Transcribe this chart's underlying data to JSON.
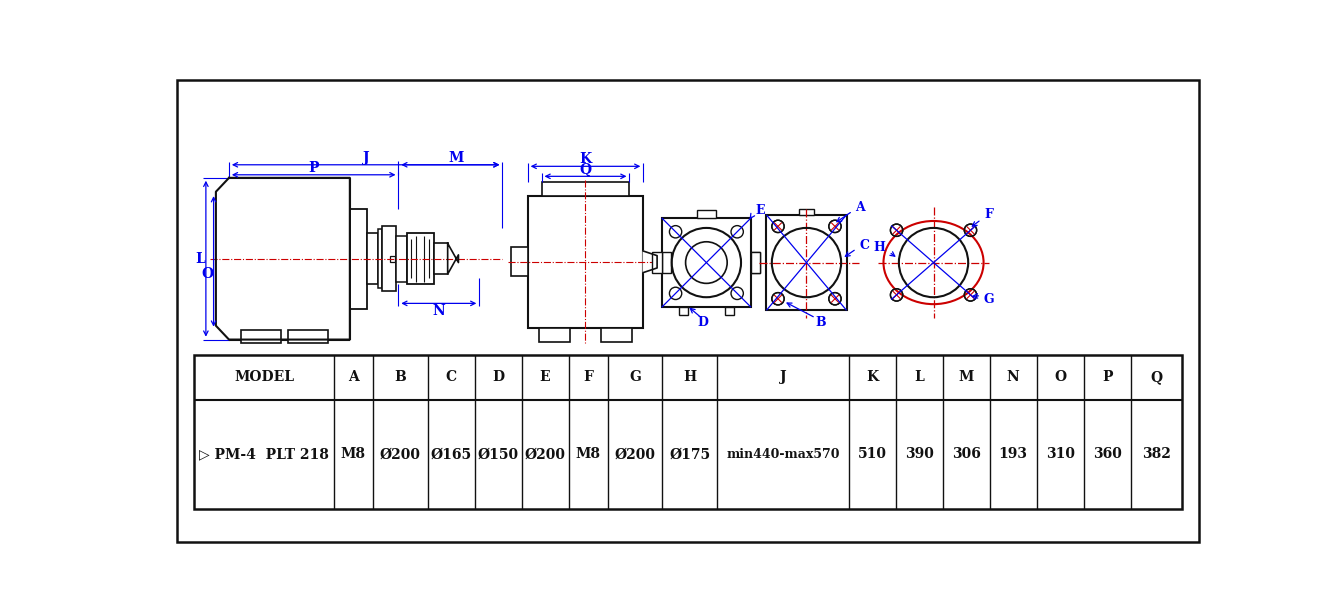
{
  "bg_color": "#ffffff",
  "blue": "#0000ee",
  "red": "#cc0000",
  "black": "#111111",
  "table_headers": [
    "MODEL",
    "A",
    "B",
    "C",
    "D",
    "E",
    "F",
    "G",
    "H",
    "J",
    "K",
    "L",
    "M",
    "N",
    "O",
    "P",
    "Q"
  ],
  "table_values": [
    "▷ PM-4  PLT 218",
    "M8",
    "Ø200",
    "Ø165",
    "Ø150",
    "Ø200",
    "M8",
    "Ø200",
    "Ø175",
    "min440-max570",
    "510",
    "390",
    "306",
    "193",
    "310",
    "360",
    "382"
  ]
}
